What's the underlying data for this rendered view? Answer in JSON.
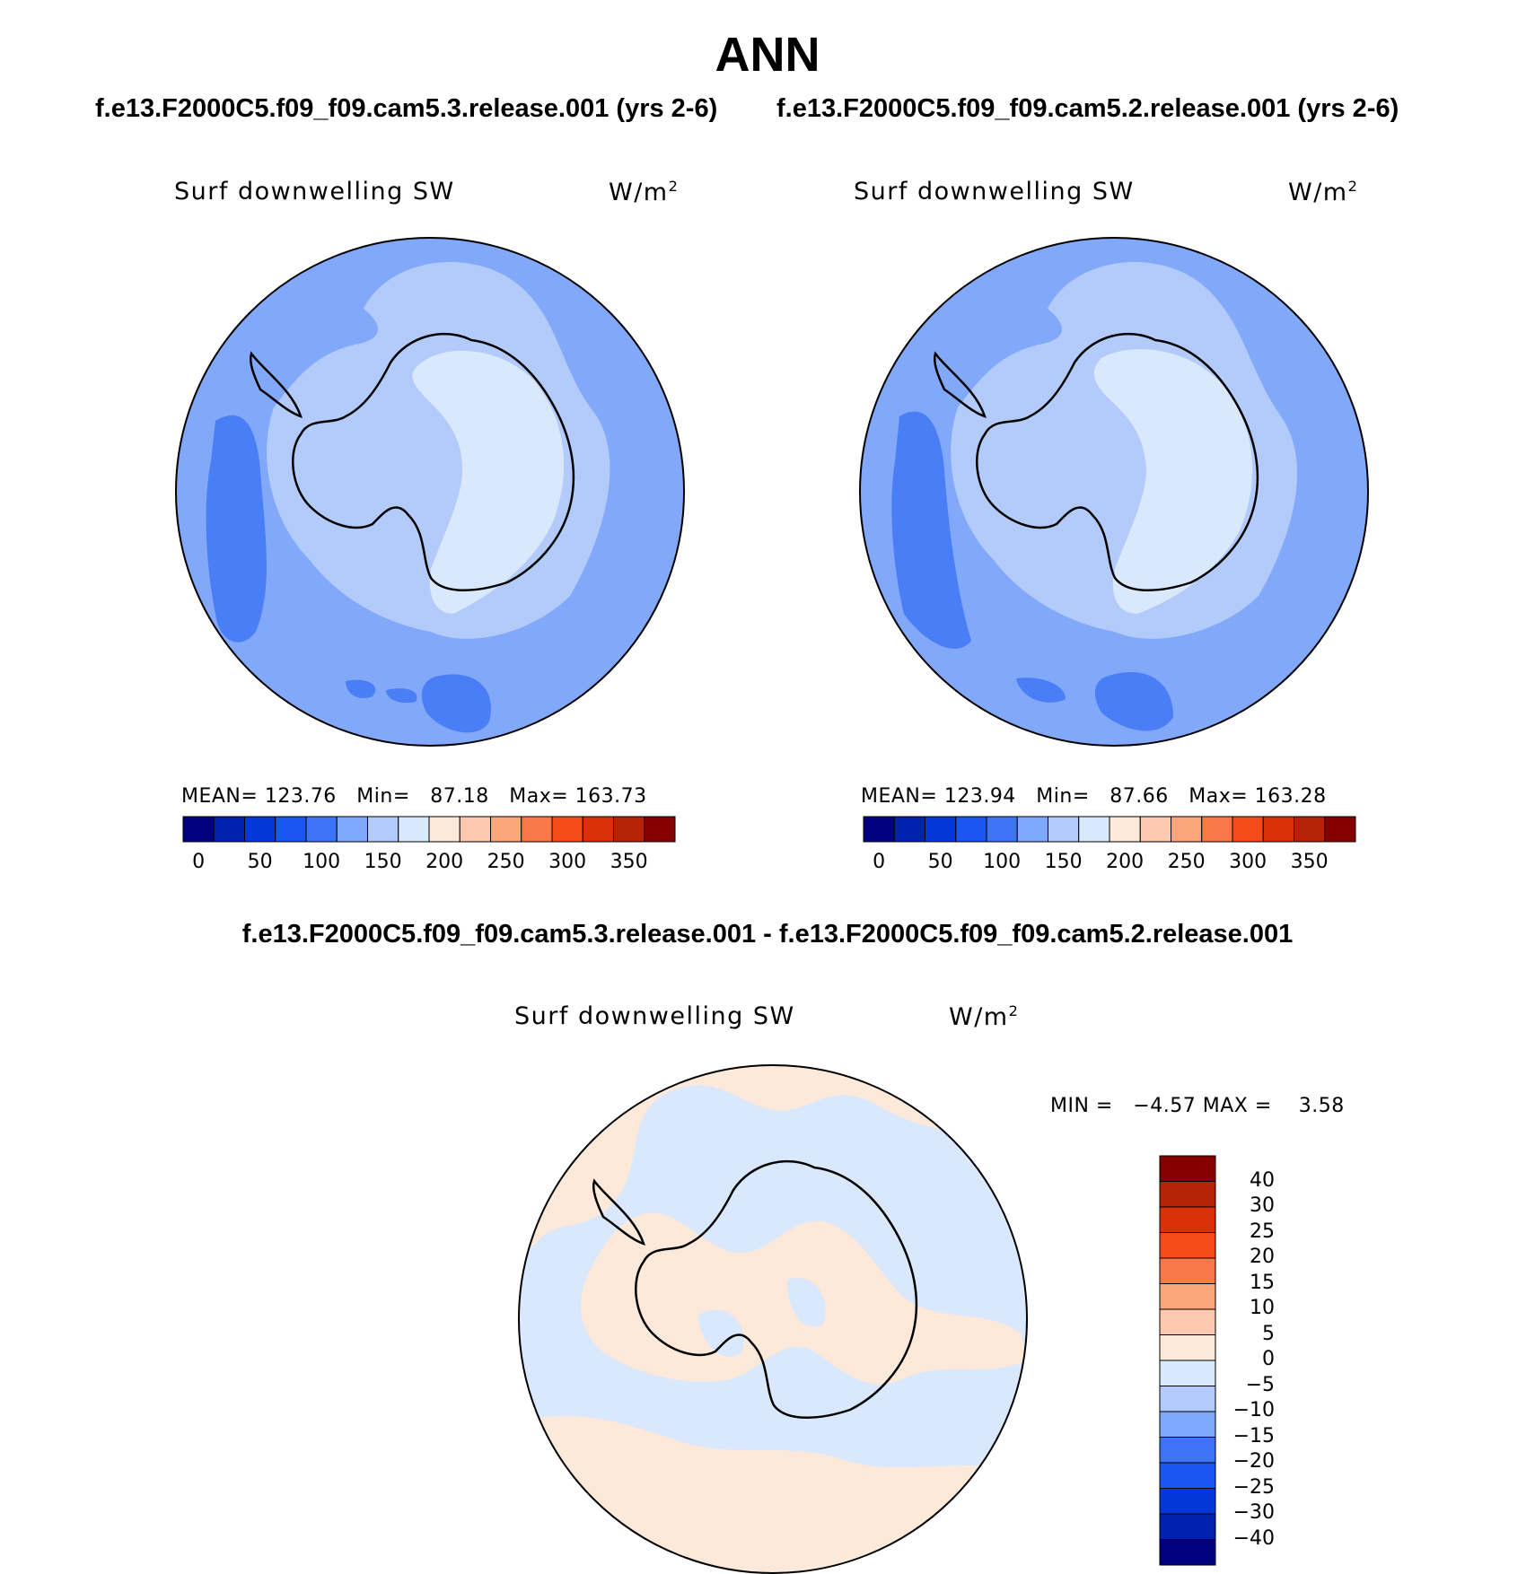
{
  "title": "ANN",
  "header": {
    "left_run": "f.e13.F2000C5.f09_f09.cam5.3.release.001 (yrs 2-6)",
    "right_run": "f.e13.F2000C5.f09_f09.cam5.2.release.001 (yrs 2-6)",
    "diff_title": "f.e13.F2000C5.f09_f09.cam5.3.release.001 - f.e13.F2000C5.f09_f09.cam5.2.release.001"
  },
  "panels": [
    {
      "variable": "Surf downwelling SW",
      "units_base": "W/m",
      "units_exp": "2",
      "stats": {
        "mean_label": "MEAN=",
        "mean": "123.76",
        "min_label": "Min=",
        "min": "87.18",
        "max_label": "Max=",
        "max": "163.73"
      }
    },
    {
      "variable": "Surf downwelling SW",
      "units_base": "W/m",
      "units_exp": "2",
      "stats": {
        "mean_label": "MEAN=",
        "mean": "123.94",
        "min_label": "Min=",
        "min": "87.66",
        "max_label": "Max=",
        "max": "163.28"
      }
    },
    {
      "variable": "Surf downwelling SW",
      "units_base": "W/m",
      "units_exp": "2",
      "stats": {
        "text": "MIN =   −4.57 MAX =    3.58"
      }
    }
  ],
  "colorbars": {
    "abs": {
      "colors": [
        "#000080",
        "#0020b0",
        "#0437d8",
        "#1a56f0",
        "#3d74f5",
        "#7fa8fb",
        "#b0cbfc",
        "#d8e8fd",
        "#fde9d9",
        "#fcc9b0",
        "#fba57c",
        "#fa7748",
        "#f54a19",
        "#d9320a",
        "#b42305",
        "#850000"
      ],
      "labels": [
        "0",
        "50",
        "100",
        "150",
        "200",
        "250",
        "300",
        "350"
      ]
    },
    "diff": {
      "colors_top_to_bottom": [
        "#850000",
        "#b42305",
        "#d9320a",
        "#f54a19",
        "#fa7748",
        "#fba57c",
        "#fcc9b0",
        "#fde9d9",
        "#d8e8fd",
        "#b0cbfc",
        "#7fa8fb",
        "#3d74f5",
        "#1a56f0",
        "#0437d8",
        "#0020b0",
        "#000080"
      ],
      "labels_top_to_bottom": [
        "40",
        "30",
        "25",
        "20",
        "15",
        "10",
        "5",
        "0",
        "−5",
        "−10",
        "−15",
        "−20",
        "−25",
        "−30",
        "−40"
      ]
    }
  },
  "map_colors": {
    "base": "#82a8fa",
    "band": "#b2cbfb",
    "interior": "#d9e8fd",
    "low": "#4a7ef6",
    "diff_neg": "#d9e8fd",
    "diff_pos": "#fde9d9"
  }
}
